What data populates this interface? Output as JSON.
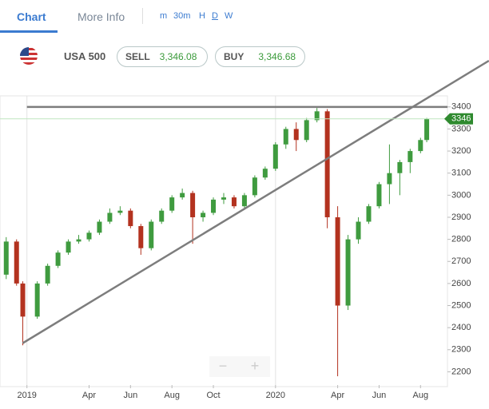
{
  "tabs": [
    "Chart",
    "More Info"
  ],
  "timeframes": [
    "m",
    "30m",
    "H",
    "D",
    "W"
  ],
  "instrument": {
    "name": "USA 500",
    "sell_label": "SELL",
    "sell_price": "3,346.08",
    "buy_label": "BUY",
    "buy_price": "3,346.68"
  },
  "zoom": {
    "out": "−",
    "in": "+"
  },
  "chart_data": {
    "type": "candlestick",
    "x": [
      -1.0,
      -0.5,
      -0.2,
      0.5,
      1.0,
      1.5,
      2.0,
      2.5,
      3.0,
      3.5,
      4.0,
      4.5,
      5.0,
      5.5,
      6.0,
      6.5,
      7.0,
      7.5,
      8.0,
      8.5,
      9.0,
      9.5,
      10.0,
      10.5,
      11.0,
      11.5,
      12.0,
      12.5,
      13.0,
      13.5,
      14.0,
      14.5,
      15.0,
      15.5,
      16.0,
      16.5,
      17.0,
      17.5,
      18.0,
      18.5,
      19.0,
      19.3
    ],
    "open": [
      2640,
      2790,
      2600,
      2450,
      2600,
      2680,
      2740,
      2790,
      2800,
      2830,
      2880,
      2920,
      2930,
      2860,
      2760,
      2880,
      2930,
      2990,
      3010,
      2900,
      2920,
      2980,
      2990,
      2950,
      3000,
      3080,
      3120,
      3230,
      3300,
      3250,
      3340,
      3380,
      2900,
      2500,
      2800,
      2880,
      2950,
      3050,
      3100,
      3150,
      3200,
      3250
    ],
    "high": [
      2810,
      2800,
      2610,
      2610,
      2690,
      2750,
      2800,
      2820,
      2840,
      2890,
      2940,
      2950,
      2940,
      2870,
      2890,
      2940,
      3000,
      3030,
      3020,
      2930,
      2990,
      3010,
      3000,
      3010,
      3090,
      3130,
      3240,
      3310,
      3330,
      3350,
      3395,
      3390,
      2950,
      2820,
      2900,
      2960,
      3060,
      3230,
      3160,
      3210,
      3260,
      3350
    ],
    "low": [
      2620,
      2590,
      2320,
      2440,
      2590,
      2670,
      2730,
      2780,
      2790,
      2820,
      2870,
      2910,
      2850,
      2730,
      2750,
      2870,
      2920,
      2980,
      2780,
      2880,
      2910,
      2960,
      2940,
      2940,
      2990,
      3070,
      3110,
      3210,
      3200,
      3240,
      3330,
      2850,
      2180,
      2480,
      2780,
      2870,
      2940,
      2960,
      3000,
      3100,
      3190,
      3240
    ],
    "close": [
      2790,
      2600,
      2450,
      2600,
      2680,
      2740,
      2790,
      2800,
      2830,
      2880,
      2920,
      2930,
      2860,
      2760,
      2880,
      2930,
      2990,
      3010,
      2900,
      2920,
      2980,
      2990,
      2950,
      3000,
      3080,
      3120,
      3230,
      3300,
      3250,
      3340,
      3380,
      2900,
      2500,
      2800,
      2880,
      2950,
      3050,
      3100,
      3150,
      3200,
      3250,
      3346
    ],
    "up_color": "#3f9b3f",
    "down_color": "#b3321f",
    "xlim": [
      -1.3,
      20.3
    ],
    "ylim": [
      2140,
      3450
    ],
    "xticks": [
      {
        "value": 0,
        "label": "2019"
      },
      {
        "value": 3,
        "label": "Apr"
      },
      {
        "value": 5,
        "label": "Jun"
      },
      {
        "value": 7,
        "label": "Aug"
      },
      {
        "value": 9,
        "label": "Oct"
      },
      {
        "value": 12,
        "label": "2020"
      },
      {
        "value": 15,
        "label": "Apr"
      },
      {
        "value": 17,
        "label": "Jun"
      },
      {
        "value": 19,
        "label": "Aug"
      }
    ],
    "yticks": [
      2200,
      2300,
      2400,
      2500,
      2600,
      2700,
      2800,
      2900,
      3000,
      3100,
      3200,
      3300,
      3400
    ],
    "current_price": 3346,
    "trendlines": [
      {
        "x": [
          0,
          20.3
        ],
        "y": [
          3400,
          3400
        ]
      },
      {
        "x": [
          -0.2,
          22.3
        ],
        "y": [
          2330,
          3609
        ]
      }
    ]
  }
}
